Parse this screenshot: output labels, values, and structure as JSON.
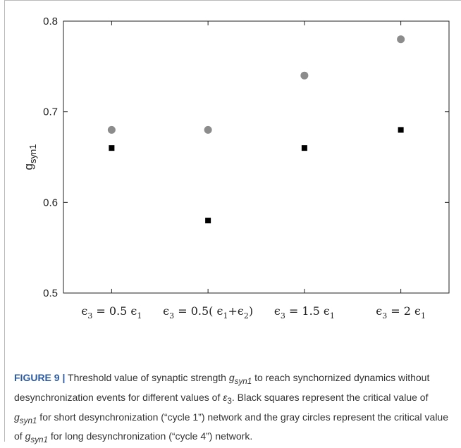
{
  "chart_data": {
    "type": "scatter",
    "title": "",
    "ylabel": "g",
    "ylabel_sub": "syn1",
    "ylim": [
      0.5,
      0.8
    ],
    "yticks": [
      "0.5",
      "0.6",
      "0.7",
      "0.8"
    ],
    "yticks_values": [
      0.5,
      0.6,
      0.7,
      0.8
    ],
    "grid": false,
    "categories": [
      {
        "lhs": "ϵ",
        "lhs_sub": "3",
        "rhs": "= 0.5 ϵ",
        "rhs_sub": "1"
      },
      {
        "lhs": "ϵ",
        "lhs_sub": "3",
        "rhs": "= 0.5( ϵ",
        "rhs_sub": "1",
        "tail": "+ϵ",
        "tail_sub": "2",
        "close": ")"
      },
      {
        "lhs": "ϵ",
        "lhs_sub": "3",
        "rhs": "= 1.5 ϵ",
        "rhs_sub": "1"
      },
      {
        "lhs": "ϵ",
        "lhs_sub": "3",
        "rhs": "= 2 ϵ",
        "rhs_sub": "1"
      }
    ],
    "series": [
      {
        "marker": "circle",
        "color": "#8c8c8c",
        "values": [
          0.68,
          0.68,
          0.74,
          0.78
        ]
      },
      {
        "marker": "square",
        "color": "#000000",
        "values": [
          0.66,
          0.58,
          0.66,
          0.68
        ]
      }
    ]
  },
  "caption": {
    "label": "FIGURE 9 |",
    "parts": [
      {
        "t": " Threshold value of synaptic strength "
      },
      {
        "t": "g",
        "i": true,
        "sub": "syn1",
        "subi": true
      },
      {
        "t": " to reach synchornized dynamics without desynchronization events for different values of "
      },
      {
        "t": "ε",
        "i": true,
        "sub": "3"
      },
      {
        "t": ". Black squares represent the critical value of "
      },
      {
        "t": "g",
        "i": true,
        "sub": "syn1",
        "subi": true
      },
      {
        "t": " for short desynchronization (“cycle 1”) network and the gray circles represent the critical value of "
      },
      {
        "t": "g",
        "i": true,
        "sub": "syn1",
        "subi": true
      },
      {
        "t": " for long desynchronization (“cycle 4”) network."
      }
    ]
  }
}
